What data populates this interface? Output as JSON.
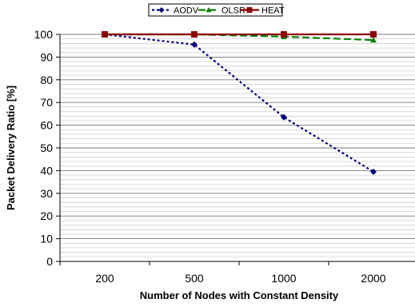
{
  "chart_data": {
    "type": "line",
    "categories": [
      "200",
      "500",
      "1000",
      "2000"
    ],
    "xlabel": "Number of Nodes with Constant Density",
    "ylabel": "Packet Delivery Ratio [%]",
    "ylim": [
      0,
      100
    ],
    "yticks": [
      0,
      10,
      20,
      30,
      40,
      50,
      60,
      70,
      80,
      90,
      100
    ],
    "minor_grid_step": 2,
    "grid": true,
    "legend_position": "top",
    "series": [
      {
        "name": "AODV",
        "values": [
          100,
          95.5,
          63.5,
          39.5
        ],
        "color": "#000080",
        "line_style": "dotted",
        "marker": "diamond"
      },
      {
        "name": "OLSR",
        "values": [
          100,
          100,
          99,
          97.5
        ],
        "color": "#008000",
        "line_style": "dashed",
        "marker": "triangle"
      },
      {
        "name": "HEAT",
        "values": [
          100,
          100,
          100,
          100
        ],
        "color": "#8B0000",
        "line_style": "solid",
        "marker": "square"
      }
    ]
  }
}
